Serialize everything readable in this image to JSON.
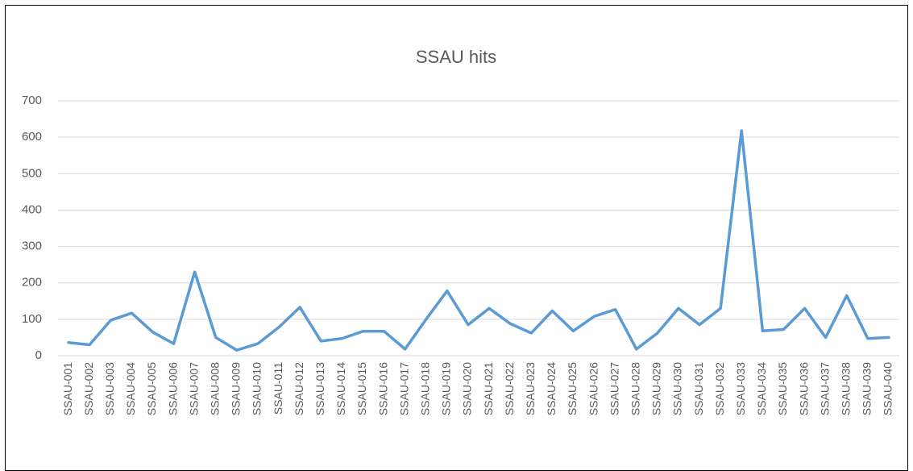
{
  "chart_data": {
    "type": "line",
    "title": "SSAU hits",
    "categories": [
      "SSAU-001",
      "SSAU-002",
      "SSAU-003",
      "SSAU-004",
      "SSAU-005",
      "SSAU-006",
      "SSAU-007",
      "SSAU-008",
      "SSAU-009",
      "SSAU-010",
      "SSAU-011",
      "SSAU-012",
      "SSAU-013",
      "SSAU-014",
      "SSAU-015",
      "SSAU-016",
      "SSAU-017",
      "SSAU-018",
      "SSAU-019",
      "SSAU-020",
      "SSAU-021",
      "SSAU-022",
      "SSAU-023",
      "SSAU-024",
      "SSAU-025",
      "SSAU-026",
      "SSAU-027",
      "SSAU-028",
      "SSAU-029",
      "SSAU-030",
      "SSAU-031",
      "SSAU-032",
      "SSAU-033",
      "SSAU-034",
      "SSAU-035",
      "SSAU-036",
      "SSAU-037",
      "SSAU-038",
      "SSAU-039",
      "SSAU-040"
    ],
    "values": [
      36,
      30,
      97,
      117,
      65,
      33,
      230,
      50,
      15,
      33,
      78,
      133,
      40,
      47,
      67,
      67,
      18,
      100,
      178,
      85,
      130,
      88,
      62,
      123,
      68,
      108,
      127,
      18,
      62,
      130,
      85,
      130,
      618,
      68,
      72,
      130,
      50,
      165,
      47,
      50
    ],
    "color": "#5b9bd5",
    "ylim": [
      0,
      700
    ],
    "yticks": [
      0,
      100,
      200,
      300,
      400,
      500,
      600,
      700
    ],
    "grid": true
  }
}
